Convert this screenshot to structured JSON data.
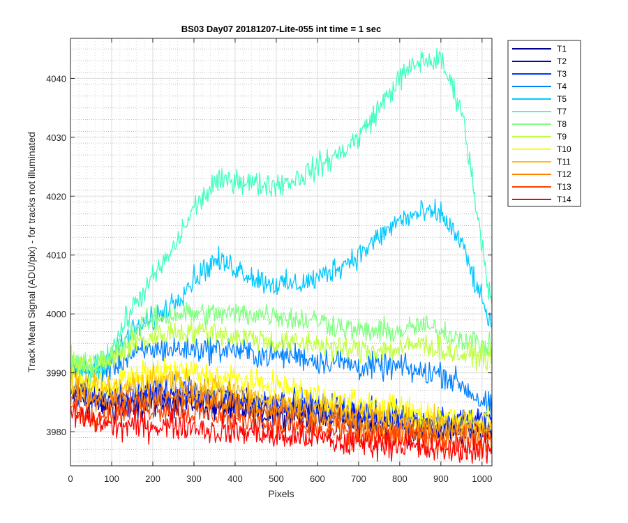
{
  "chart_data": {
    "type": "line",
    "title": "BS03 Day07 20181207-Lite-055 int time = 1 sec",
    "xlabel": "Pixels",
    "ylabel": "Track Mean Signal (ADU/pix) - for tracks not illuminated",
    "xlim": [
      0,
      1024
    ],
    "ylim": [
      3974.2,
      4046.8
    ],
    "xticks": [
      0,
      100,
      200,
      300,
      400,
      500,
      600,
      700,
      800,
      900,
      1000
    ],
    "yticks": [
      3980,
      3990,
      4000,
      4010,
      4020,
      4030,
      4040
    ],
    "grid": true,
    "minor_grid": true,
    "legend_position": "outside-top-right",
    "noise_note": "high-frequency pixel noise approx ±2 ADU around the curves below",
    "x": [
      0,
      50,
      100,
      150,
      200,
      250,
      300,
      350,
      400,
      450,
      500,
      550,
      600,
      650,
      700,
      750,
      800,
      850,
      900,
      950,
      1000,
      1024
    ],
    "series": [
      {
        "name": "T1",
        "color": "#00008f",
        "noise": 1.8,
        "values": [
          3986,
          3985,
          3984,
          3984,
          3985,
          3985,
          3985,
          3984,
          3984,
          3983,
          3983,
          3983,
          3982,
          3982,
          3981,
          3981,
          3981,
          3980,
          3980,
          3980,
          3980,
          3980
        ]
      },
      {
        "name": "T2",
        "color": "#0000c8",
        "noise": 1.8,
        "values": [
          3987,
          3986,
          3985,
          3985,
          3986,
          3986,
          3986,
          3985,
          3985,
          3984,
          3984,
          3984,
          3983,
          3983,
          3982,
          3982,
          3982,
          3981,
          3981,
          3981,
          3981,
          3981
        ]
      },
      {
        "name": "T3",
        "color": "#0033ff",
        "noise": 1.9,
        "values": [
          3987,
          3986,
          3986,
          3986,
          3987,
          3987,
          3987,
          3986,
          3986,
          3985,
          3985,
          3985,
          3984,
          3984,
          3983,
          3983,
          3983,
          3982,
          3982,
          3982,
          3982,
          3982
        ]
      },
      {
        "name": "T4",
        "color": "#0080ff",
        "noise": 1.7,
        "values": [
          3991,
          3990,
          3991,
          3993,
          3994,
          3994,
          3994,
          3994,
          3994,
          3993,
          3993,
          3993,
          3992,
          3992,
          3991,
          3991,
          3991,
          3990,
          3990,
          3988,
          3985,
          3984
        ]
      },
      {
        "name": "T5",
        "color": "#00c8ff",
        "noise": 1.6,
        "values": [
          3991,
          3990,
          3993,
          3997,
          3999,
          4002,
          4006,
          4009,
          4008,
          4006,
          4005,
          4005,
          4006,
          4008,
          4010,
          4013,
          4016,
          4017,
          4017,
          4012,
          4002,
          3998
        ]
      },
      {
        "name": "T7",
        "color": "#40ffc0",
        "noise": 1.6,
        "values": [
          3991,
          3990,
          3994,
          4001,
          4006,
          4011,
          4018,
          4022,
          4023,
          4022,
          4022,
          4023,
          4025,
          4027,
          4030,
          4035,
          4040,
          4043,
          4043,
          4035,
          4012,
          4001
        ]
      },
      {
        "name": "T8",
        "color": "#80ff80",
        "noise": 1.6,
        "values": [
          3992,
          3991,
          3993,
          3997,
          3999,
          4000,
          4000,
          4000,
          4000,
          4000,
          4000,
          3999,
          3999,
          3998,
          3997,
          3997,
          3997,
          3998,
          3997,
          3996,
          3995,
          3994
        ]
      },
      {
        "name": "T9",
        "color": "#c0ff40",
        "noise": 1.6,
        "values": [
          3992,
          3991,
          3992,
          3995,
          3996,
          3997,
          3997,
          3997,
          3996,
          3996,
          3995,
          3995,
          3995,
          3994,
          3994,
          3994,
          3994,
          3995,
          3994,
          3993,
          3993,
          3992
        ]
      },
      {
        "name": "T10",
        "color": "#ffff00",
        "noise": 1.8,
        "values": [
          3989,
          3988,
          3988,
          3989,
          3990,
          3990,
          3990,
          3989,
          3989,
          3988,
          3988,
          3987,
          3986,
          3985,
          3985,
          3984,
          3984,
          3983,
          3983,
          3982,
          3982,
          3982
        ]
      },
      {
        "name": "T11",
        "color": "#ffc000",
        "noise": 1.8,
        "values": [
          3988,
          3987,
          3987,
          3988,
          3989,
          3989,
          3988,
          3987,
          3987,
          3986,
          3985,
          3985,
          3984,
          3984,
          3983,
          3983,
          3982,
          3982,
          3981,
          3981,
          3981,
          3981
        ]
      },
      {
        "name": "T12",
        "color": "#ff8000",
        "noise": 1.8,
        "values": [
          3986,
          3985,
          3985,
          3986,
          3986,
          3986,
          3986,
          3985,
          3985,
          3984,
          3984,
          3983,
          3982,
          3982,
          3981,
          3981,
          3980,
          3980,
          3980,
          3980,
          3979,
          3979
        ]
      },
      {
        "name": "T13",
        "color": "#ff4000",
        "noise": 1.8,
        "values": [
          3984,
          3983,
          3983,
          3984,
          3984,
          3984,
          3983,
          3983,
          3982,
          3982,
          3981,
          3981,
          3980,
          3980,
          3979,
          3979,
          3979,
          3979,
          3978,
          3978,
          3978,
          3978
        ]
      },
      {
        "name": "T14",
        "color": "#ff0000",
        "noise": 1.8,
        "values": [
          3983,
          3982,
          3981,
          3981,
          3981,
          3981,
          3981,
          3980,
          3980,
          3980,
          3979,
          3979,
          3979,
          3978,
          3978,
          3978,
          3978,
          3977,
          3977,
          3977,
          3977,
          3977
        ]
      }
    ]
  }
}
